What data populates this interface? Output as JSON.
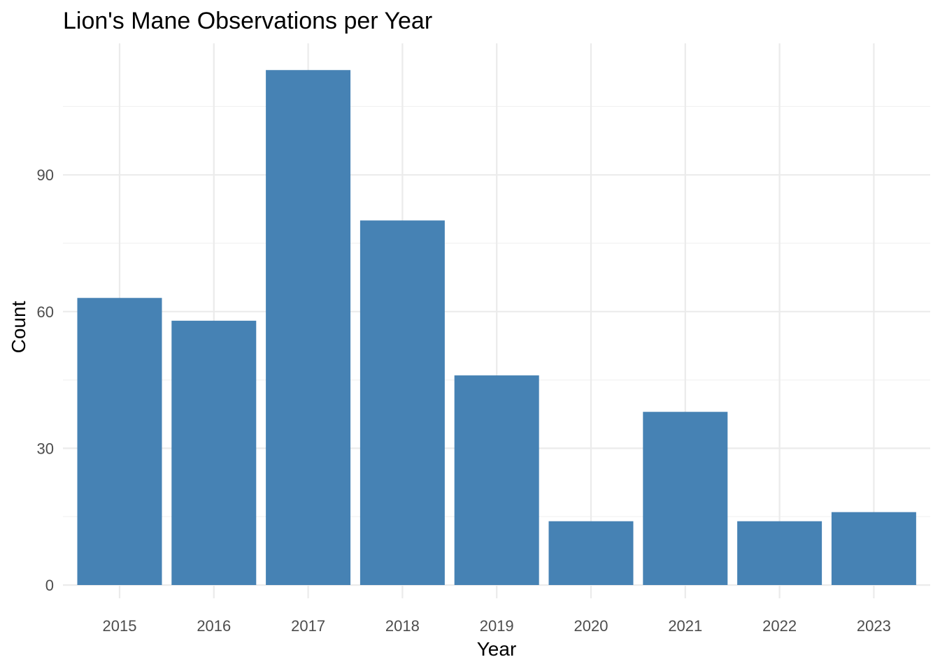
{
  "chart_data": {
    "type": "bar",
    "title": "Lion's Mane Observations per Year",
    "xlabel": "Year",
    "ylabel": "Count",
    "categories": [
      "2015",
      "2016",
      "2017",
      "2018",
      "2019",
      "2020",
      "2021",
      "2022",
      "2023"
    ],
    "values": [
      63,
      58,
      113,
      80,
      46,
      14,
      38,
      14,
      16
    ],
    "ylim": [
      0,
      118
    ],
    "yticks": [
      0,
      30,
      60,
      90
    ],
    "grid": true,
    "legend": "none",
    "bar_color": "#4682B4",
    "grid_color": "#EBEBEB"
  }
}
